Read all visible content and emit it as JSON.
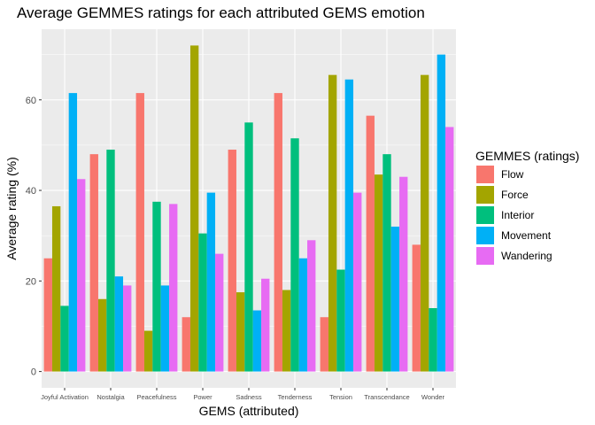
{
  "chart_data": {
    "type": "bar",
    "title": "Average GEMMES ratings for each attributed GEMS emotion",
    "xlabel": "GEMS (attributed)",
    "ylabel": "Average rating (%)",
    "ylim": [
      -3.6,
      75.6
    ],
    "yticks": [
      0,
      20,
      40,
      60
    ],
    "grid": true,
    "legend_title": "GEMMES (ratings)",
    "legend_position": "right",
    "categories": [
      "Joyful Activation",
      "Nostalgia",
      "Peacefulness",
      "Power",
      "Sadness",
      "Tenderness",
      "Tension",
      "Transcendance",
      "Wonder"
    ],
    "series": [
      {
        "name": "Flow",
        "color": "#F8766D",
        "values": [
          25,
          48,
          61.5,
          12,
          49,
          61.5,
          12,
          56.5,
          28
        ]
      },
      {
        "name": "Force",
        "color": "#A3A500",
        "values": [
          36.5,
          16,
          9,
          72,
          17.5,
          18,
          65.5,
          43.5,
          65.5
        ]
      },
      {
        "name": "Interior",
        "color": "#00BF7D",
        "values": [
          14.5,
          49,
          37.5,
          30.5,
          55,
          51.5,
          22.5,
          48,
          14
        ]
      },
      {
        "name": "Movement",
        "color": "#00B0F6",
        "values": [
          61.5,
          21,
          19,
          39.5,
          13.5,
          25,
          64.5,
          32,
          70
        ]
      },
      {
        "name": "Wandering",
        "color": "#E76BF3",
        "values": [
          42.5,
          19,
          37,
          26,
          20.5,
          29,
          39.5,
          43,
          54
        ]
      }
    ]
  }
}
